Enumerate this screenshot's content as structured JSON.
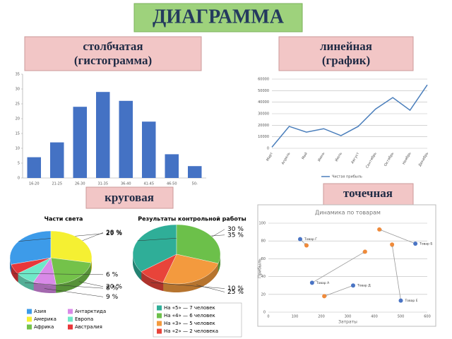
{
  "slide": {
    "title": "ДИАГРАММА",
    "labels": [
      [
        "столбчатая",
        "(гистограмма)"
      ],
      [
        "линейная",
        "(график)"
      ],
      [
        "круговая"
      ],
      [
        "точечная"
      ]
    ]
  },
  "chart_data": [
    {
      "type": "bar",
      "categories": [
        "16-20",
        "21-25",
        "26-30",
        "31-35",
        "36-40",
        "41-45",
        "46-50",
        "50-"
      ],
      "values": [
        7,
        12,
        24,
        29,
        26,
        19,
        8,
        4
      ],
      "color": "#4472c4",
      "ylim": [
        0,
        35
      ],
      "yticks": [
        0,
        5,
        10,
        15,
        20,
        25,
        30,
        35
      ],
      "grid": false
    },
    {
      "type": "line",
      "categories": [
        "Март",
        "Апрель",
        "Май",
        "Июнь",
        "Июль",
        "Август",
        "Сентябрь",
        "Октябрь",
        "Ноябрь",
        "Декабрь"
      ],
      "series": [
        {
          "name": "Чистая прибыль",
          "color": "#4a7ebb",
          "values": [
            1000,
            19000,
            14000,
            17000,
            11000,
            19000,
            34000,
            44000,
            33000,
            55000
          ]
        }
      ],
      "ylim": [
        0,
        60000
      ],
      "yticks": [
        0,
        10000,
        20000,
        30000,
        40000,
        50000,
        60000
      ],
      "grid": true
    },
    {
      "type": "pie",
      "title": "Части света",
      "categories": [
        "Азия",
        "Америка",
        "Африка",
        "Антарктида",
        "Европа",
        "Австралия"
      ],
      "values": [
        29,
        28,
        20,
        9,
        8,
        6
      ],
      "value_labels": [
        "29 %",
        "28 %",
        "20 %",
        "9 %",
        "8 %",
        "6 %"
      ],
      "colors": [
        "#3d9be9",
        "#f5f032",
        "#74c24a",
        "#d98ae8",
        "#6fe8c8",
        "#e8373a"
      ]
    },
    {
      "type": "pie",
      "title": "Результаты контрольной работы",
      "categories": [
        "На «5» — 7 человек",
        "На «4» — 6 человек",
        "На «3» — 5 человек",
        "На «2» — 2 человека"
      ],
      "values": [
        35,
        30,
        25,
        10
      ],
      "value_labels": [
        "35 %",
        "30 %",
        "25 %",
        "10 %"
      ],
      "colors": [
        "#2fae98",
        "#6cc04a",
        "#f39a3e",
        "#e8443a"
      ]
    },
    {
      "type": "scatter",
      "title": "Динамика по товарам",
      "xlabel": "Затраты",
      "ylabel": "Прибыль",
      "xlim": [
        0,
        600
      ],
      "ylim": [
        0,
        100
      ],
      "xticks": [
        0,
        100,
        200,
        300,
        400,
        500,
        600
      ],
      "yticks": [
        0,
        20,
        40,
        60,
        80,
        100
      ],
      "series": [
        {
          "color": "#4a74c4",
          "x": [
            120,
            165,
            320,
            555,
            500
          ],
          "values": [
            82,
            33,
            30,
            77,
            13
          ],
          "labels": [
            "Товар Г",
            "Товар А",
            "Товар Д",
            "Товар Б",
            "Товар Е"
          ]
        },
        {
          "color": "#ef8a3a",
          "x": [
            144,
            365,
            211,
            419,
            467
          ],
          "values": [
            75,
            68,
            18,
            93,
            76
          ]
        }
      ]
    }
  ]
}
